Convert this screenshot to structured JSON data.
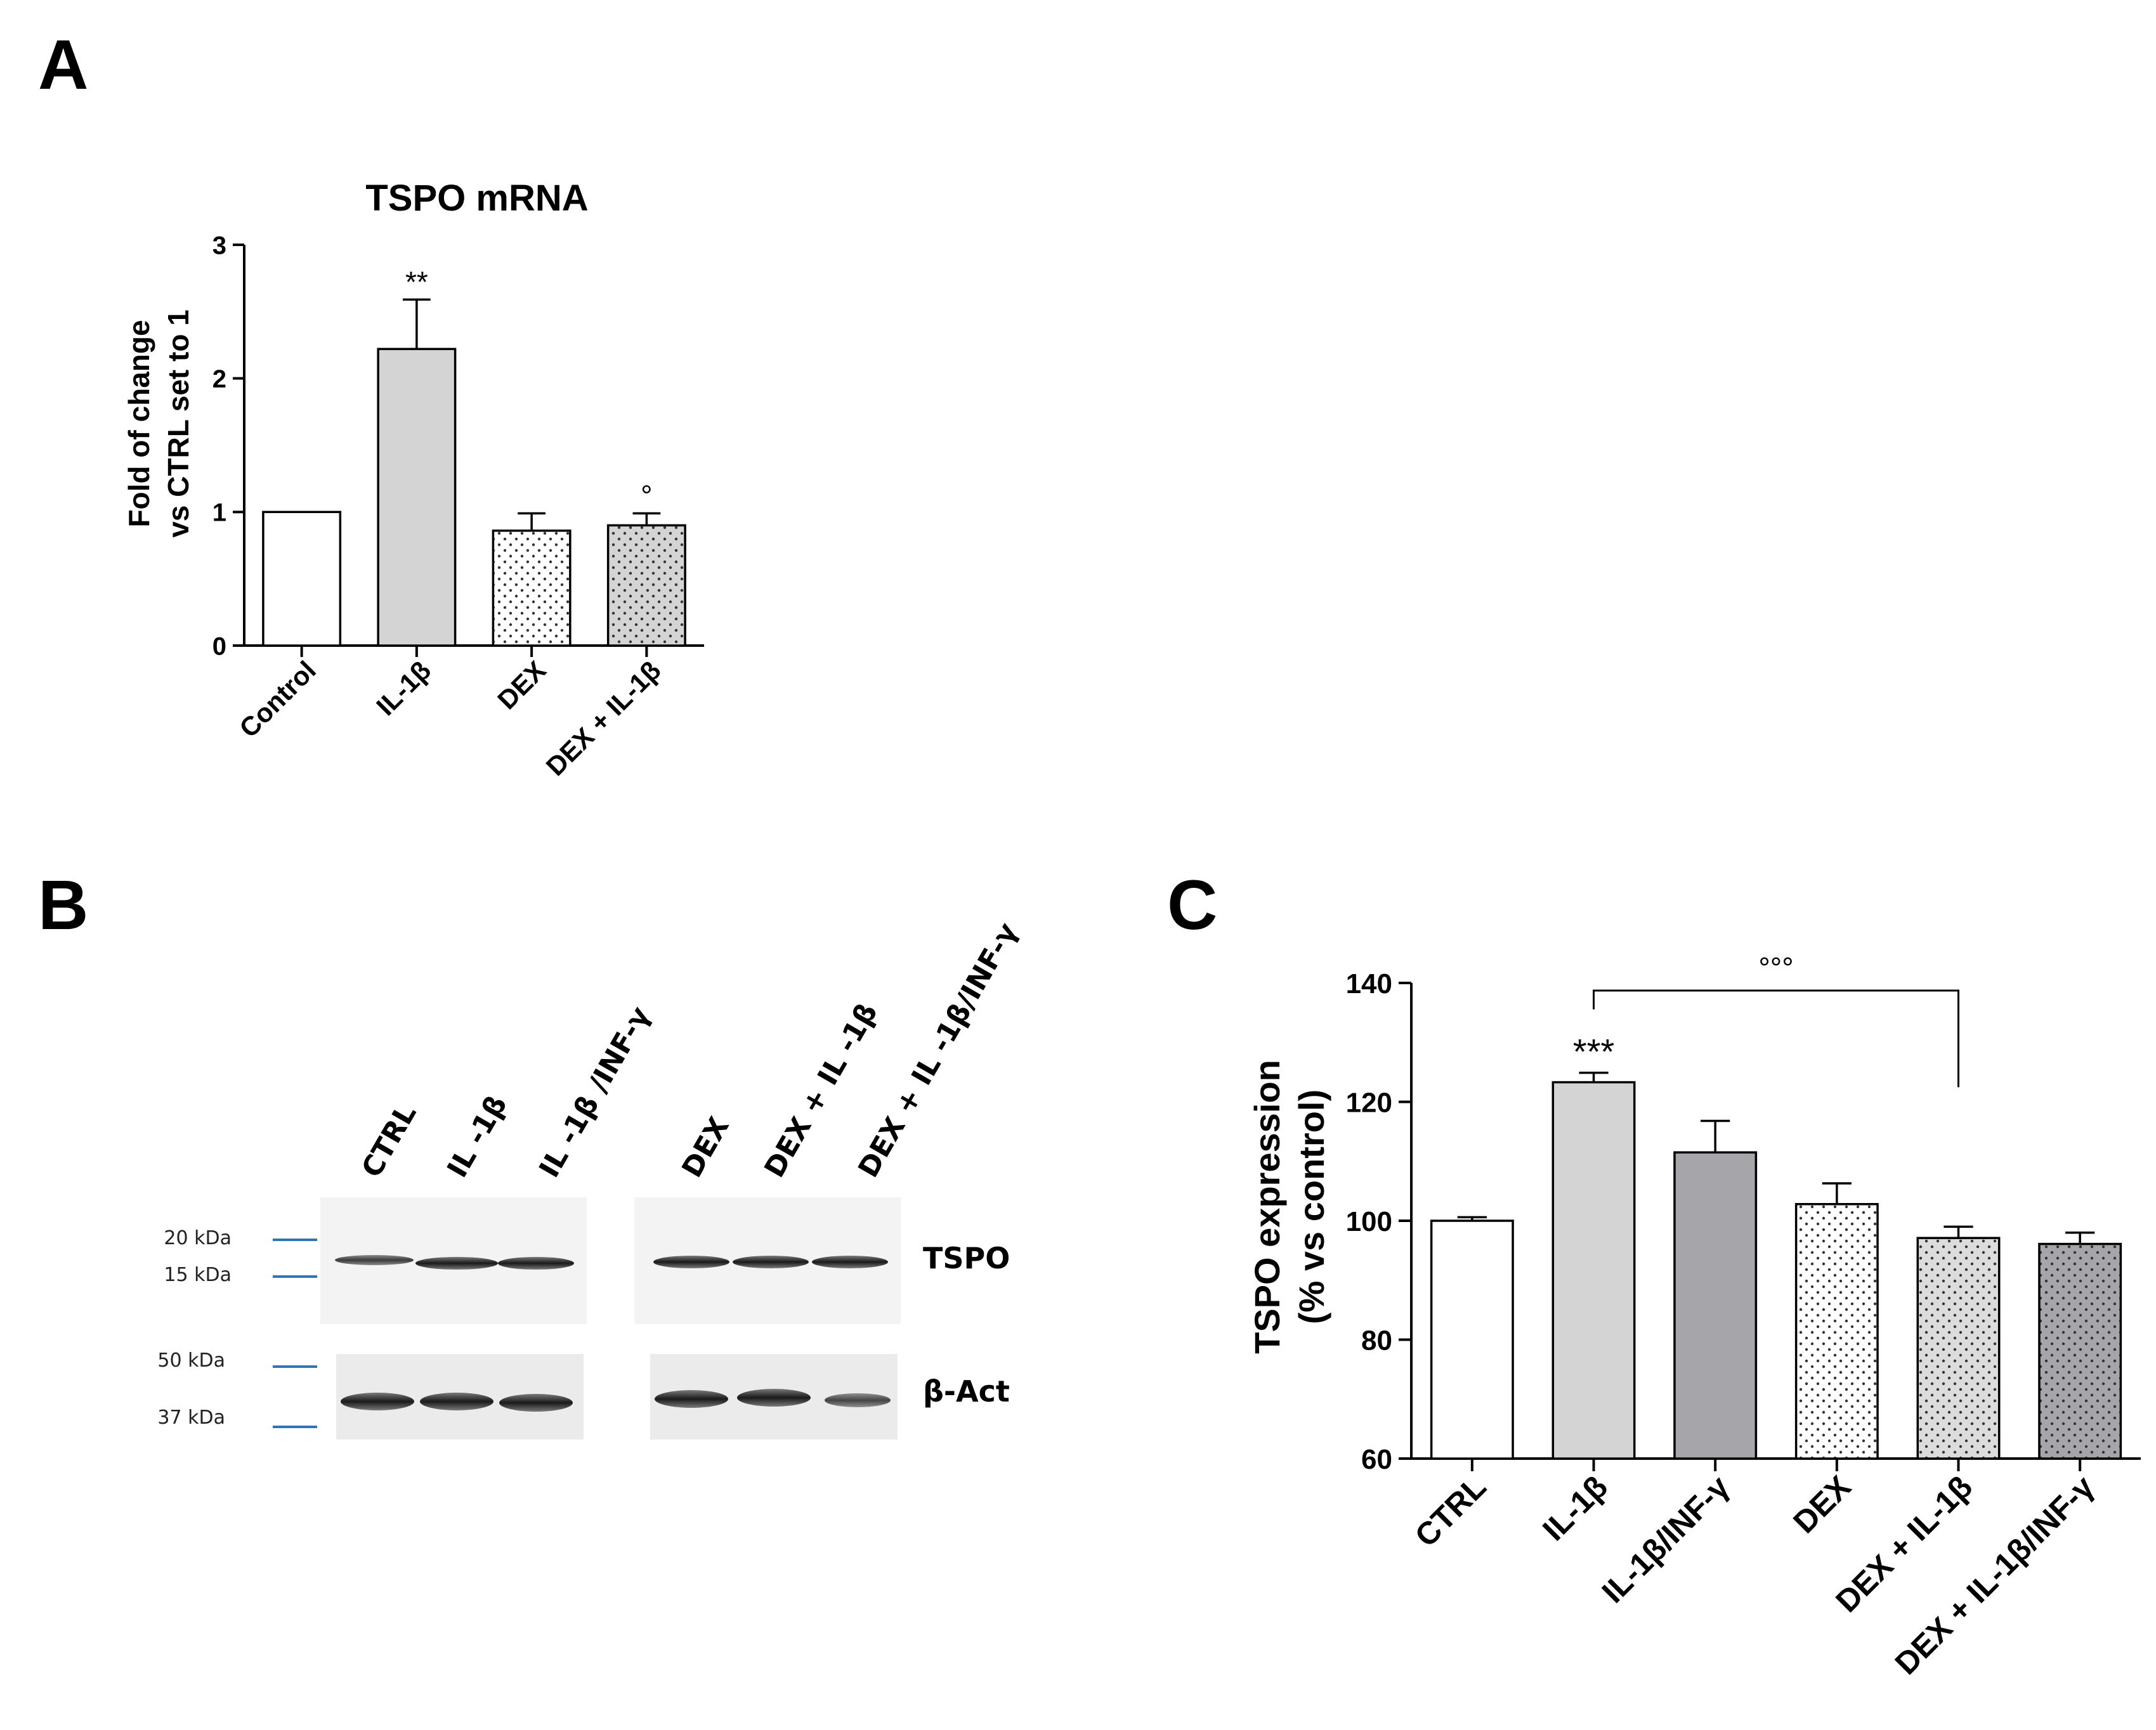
{
  "panel_labels": {
    "a": "A",
    "b": "B",
    "c": "C"
  },
  "chart_data": [
    {
      "type": "bar",
      "panel": "A",
      "title": "TSPO mRNA",
      "xlabel": "",
      "ylabel_lines": [
        "Fold of change",
        "vs CTRL set to 1"
      ],
      "categories": [
        "Control",
        "IL-1β",
        "DEX",
        "DEX + IL-1β"
      ],
      "values": [
        1.0,
        2.22,
        0.86,
        0.9
      ],
      "errors": [
        0,
        0.37,
        0.13,
        0.09
      ],
      "annotations": [
        "",
        "**",
        "",
        "°"
      ],
      "fills": [
        "white",
        "lightgray",
        "dotted-white",
        "dotted-gray"
      ],
      "ylim": [
        0,
        3
      ],
      "yticks": [
        "0",
        "1",
        "2",
        "3"
      ],
      "grid": false
    },
    {
      "type": "bar",
      "panel": "C",
      "title": "",
      "xlabel": "",
      "ylabel_lines": [
        "TSPO expression",
        "(% vs control)"
      ],
      "categories": [
        "CTRL",
        "IL-1β",
        "IL-1β/INF-γ",
        "DEX",
        "DEX + IL-1β",
        "DEX + IL-1β/INF-γ"
      ],
      "values": [
        100,
        123.3,
        111.5,
        102.8,
        97.1,
        96.1
      ],
      "errors": [
        0.6,
        1.6,
        5.3,
        3.5,
        1.9,
        1.9
      ],
      "annotations": [
        "",
        "***",
        "",
        "",
        "",
        ""
      ],
      "bracket": {
        "from": "IL-1β",
        "to": "DEX + IL-1β",
        "label": "°°°"
      },
      "fills": [
        "white",
        "lightgray",
        "darkgray",
        "dotted-white",
        "dotted-lightgray",
        "dotted-darkgray"
      ],
      "ylim": [
        60,
        140
      ],
      "yticks": [
        "60",
        "80",
        "100",
        "120",
        "140"
      ],
      "grid": false
    }
  ],
  "blot": {
    "lanes": [
      "CTRL",
      "IL -1β",
      "IL -1β /INF-γ",
      "DEX",
      "DEX + IL -1β",
      "DEX + IL -1β/INF-γ"
    ],
    "markers": [
      "20 kDa",
      "15 kDa",
      "50 kDa",
      "37 kDa"
    ],
    "bands": [
      "TSPO",
      "β-Act"
    ]
  }
}
